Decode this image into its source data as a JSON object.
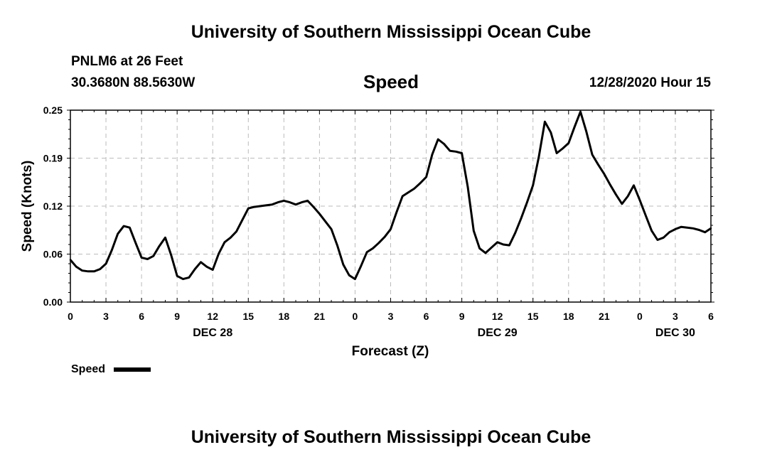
{
  "header": {
    "title": "University of Southern Mississippi Ocean Cube",
    "station": "PNLM6 at 26 Feet",
    "coordinates": "30.3680N 88.5630W",
    "variable": "Speed",
    "issued": "12/28/2020 Hour 15"
  },
  "footer": {
    "title": "University of Southern Mississippi Ocean Cube"
  },
  "legend": {
    "label": "Speed"
  },
  "chart_data": {
    "type": "line",
    "title": "Speed",
    "xlabel": "Forecast (Z)",
    "ylabel": "Speed (Knots)",
    "xlim": [
      0,
      54
    ],
    "ylim": [
      0,
      0.25
    ],
    "yticks": [
      "0.00",
      "0.06",
      "0.12",
      "0.19",
      "0.25"
    ],
    "ytick_values": [
      0,
      0.0625,
      0.125,
      0.1875,
      0.25
    ],
    "xticks": [
      "0",
      "3",
      "6",
      "9",
      "12",
      "15",
      "18",
      "21",
      "0",
      "3",
      "6",
      "9",
      "12",
      "15",
      "18",
      "21",
      "0",
      "3",
      "6"
    ],
    "day_labels": [
      {
        "label": "DEC 28",
        "hour": 12
      },
      {
        "label": "DEC 29",
        "hour": 36
      },
      {
        "label": "DEC 30",
        "hour": 51
      }
    ],
    "grid": true,
    "series": [
      {
        "name": "Speed",
        "x": [
          0,
          0.5,
          1,
          1.5,
          2,
          2.5,
          3,
          3.5,
          4,
          4.5,
          5,
          5.5,
          6,
          6.5,
          7,
          7.5,
          8,
          8.5,
          9,
          9.5,
          10,
          10.5,
          11,
          11.5,
          12,
          12.5,
          13,
          13.5,
          14,
          14.5,
          15,
          15.5,
          16,
          16.5,
          17,
          17.5,
          18,
          18.5,
          19,
          19.5,
          20,
          20.5,
          21,
          21.5,
          22,
          22.5,
          23,
          23.5,
          24,
          24.5,
          25,
          25.5,
          26,
          26.5,
          27,
          27.5,
          28,
          28.5,
          29,
          29.5,
          30,
          30.5,
          31,
          31.5,
          32,
          32.5,
          33,
          33.5,
          34,
          34.5,
          35,
          35.5,
          36,
          36.5,
          37,
          37.5,
          38,
          38.5,
          39,
          39.5,
          40,
          40.5,
          41,
          41.5,
          42,
          42.5,
          43,
          43.5,
          44,
          44.5,
          45,
          45.5,
          46,
          46.5,
          47,
          47.5,
          48,
          48.5,
          49,
          49.5,
          50,
          50.5,
          51,
          51.5,
          52,
          52.5,
          53,
          53.5,
          54
        ],
        "values": [
          0.055,
          0.046,
          0.041,
          0.04,
          0.04,
          0.043,
          0.05,
          0.068,
          0.089,
          0.099,
          0.097,
          0.077,
          0.058,
          0.056,
          0.06,
          0.073,
          0.084,
          0.061,
          0.034,
          0.03,
          0.032,
          0.043,
          0.052,
          0.046,
          0.042,
          0.063,
          0.078,
          0.084,
          0.092,
          0.107,
          0.122,
          0.124,
          0.125,
          0.126,
          0.127,
          0.13,
          0.132,
          0.13,
          0.127,
          0.13,
          0.132,
          0.124,
          0.115,
          0.105,
          0.095,
          0.074,
          0.049,
          0.035,
          0.03,
          0.047,
          0.065,
          0.07,
          0.077,
          0.085,
          0.095,
          0.117,
          0.138,
          0.143,
          0.148,
          0.155,
          0.163,
          0.192,
          0.212,
          0.206,
          0.197,
          0.196,
          0.194,
          0.15,
          0.093,
          0.07,
          0.064,
          0.071,
          0.078,
          0.075,
          0.074,
          0.09,
          0.109,
          0.13,
          0.152,
          0.19,
          0.235,
          0.221,
          0.194,
          0.2,
          0.207,
          0.228,
          0.248,
          0.222,
          0.192,
          0.179,
          0.167,
          0.153,
          0.14,
          0.128,
          0.138,
          0.152,
          0.133,
          0.113,
          0.093,
          0.081,
          0.084,
          0.091,
          0.095,
          0.098,
          0.097,
          0.096,
          0.094,
          0.091,
          0.096
        ]
      }
    ]
  },
  "style": {
    "line_color": "#000000",
    "grid_color": "#bbbbbb",
    "background": "#ffffff"
  }
}
